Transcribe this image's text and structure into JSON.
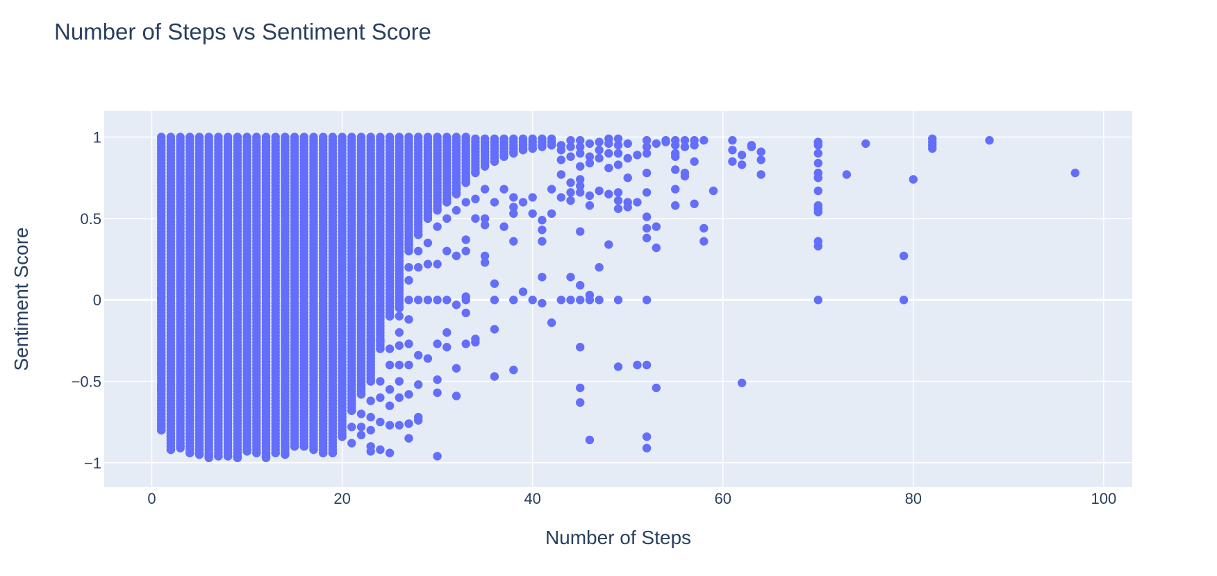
{
  "chart_data": {
    "type": "scatter",
    "title": "Number of Steps vs Sentiment Score",
    "xlabel": "Number of Steps",
    "ylabel": "Sentiment Score",
    "xlim": [
      -5,
      103
    ],
    "ylim": [
      -1.15,
      1.16
    ],
    "x_ticks": [
      {
        "value": 0,
        "label": "0"
      },
      {
        "value": 20,
        "label": "20"
      },
      {
        "value": 40,
        "label": "40"
      },
      {
        "value": 60,
        "label": "60"
      },
      {
        "value": 80,
        "label": "80"
      },
      {
        "value": 100,
        "label": "100"
      }
    ],
    "y_ticks": [
      {
        "value": -1,
        "label": "−1"
      },
      {
        "value": -0.5,
        "label": "−0.5"
      },
      {
        "value": 0,
        "label": "0"
      },
      {
        "value": 0.5,
        "label": "0.5"
      },
      {
        "value": 1,
        "label": "1"
      }
    ],
    "grid": true,
    "colors": {
      "marker": "#636efa",
      "plot_bg": "#e5ecf6",
      "grid": "#ffffff",
      "text": "#2a3f5f"
    },
    "dense_columns": [
      {
        "x": 1,
        "min": -0.8,
        "max": 1.0
      },
      {
        "x": 2,
        "min": -0.92,
        "max": 1.0
      },
      {
        "x": 3,
        "min": -0.91,
        "max": 1.0
      },
      {
        "x": 4,
        "min": -0.94,
        "max": 1.0
      },
      {
        "x": 5,
        "min": -0.95,
        "max": 1.0
      },
      {
        "x": 6,
        "min": -0.97,
        "max": 1.0
      },
      {
        "x": 7,
        "min": -0.96,
        "max": 1.0
      },
      {
        "x": 8,
        "min": -0.96,
        "max": 1.0
      },
      {
        "x": 9,
        "min": -0.97,
        "max": 1.0
      },
      {
        "x": 10,
        "min": -0.93,
        "max": 1.0
      },
      {
        "x": 11,
        "min": -0.94,
        "max": 1.0
      },
      {
        "x": 12,
        "min": -0.97,
        "max": 1.0
      },
      {
        "x": 13,
        "min": -0.94,
        "max": 1.0
      },
      {
        "x": 14,
        "min": -0.95,
        "max": 1.0
      },
      {
        "x": 15,
        "min": -0.9,
        "max": 1.0
      },
      {
        "x": 16,
        "min": -0.9,
        "max": 1.0
      },
      {
        "x": 17,
        "min": -0.92,
        "max": 1.0
      },
      {
        "x": 18,
        "min": -0.94,
        "max": 1.0
      },
      {
        "x": 19,
        "min": -0.94,
        "max": 1.0
      },
      {
        "x": 20,
        "min": -0.84,
        "max": 1.0
      },
      {
        "x": 21,
        "min": -0.68,
        "max": 1.0
      },
      {
        "x": 22,
        "min": -0.58,
        "max": 1.0
      },
      {
        "x": 23,
        "min": -0.5,
        "max": 1.0
      },
      {
        "x": 24,
        "min": -0.3,
        "max": 1.0
      },
      {
        "x": 25,
        "min": -0.1,
        "max": 1.0
      },
      {
        "x": 26,
        "min": -0.05,
        "max": 1.0
      },
      {
        "x": 27,
        "min": 0.3,
        "max": 1.0
      },
      {
        "x": 28,
        "min": 0.4,
        "max": 1.0
      },
      {
        "x": 29,
        "min": 0.5,
        "max": 1.0
      },
      {
        "x": 30,
        "min": 0.55,
        "max": 1.0
      },
      {
        "x": 31,
        "min": 0.6,
        "max": 1.0
      },
      {
        "x": 32,
        "min": 0.65,
        "max": 1.0
      },
      {
        "x": 33,
        "min": 0.72,
        "max": 1.0
      },
      {
        "x": 34,
        "min": 0.78,
        "max": 0.99
      },
      {
        "x": 35,
        "min": 0.82,
        "max": 0.99
      },
      {
        "x": 36,
        "min": 0.85,
        "max": 0.99
      },
      {
        "x": 37,
        "min": 0.88,
        "max": 0.99
      },
      {
        "x": 38,
        "min": 0.9,
        "max": 0.99
      },
      {
        "x": 39,
        "min": 0.92,
        "max": 0.99
      },
      {
        "x": 40,
        "min": 0.93,
        "max": 0.99
      },
      {
        "x": 41,
        "min": 0.94,
        "max": 0.99
      },
      {
        "x": 42,
        "min": 0.95,
        "max": 0.99
      }
    ],
    "points": [
      [
        1,
        0.01
      ],
      [
        1,
        0.07
      ],
      [
        1,
        0.12
      ],
      [
        1,
        0.2
      ],
      [
        1,
        -0.22
      ],
      [
        1,
        -0.34
      ],
      [
        1,
        -0.39
      ],
      [
        1,
        -0.44
      ],
      [
        1,
        -0.52
      ],
      [
        1,
        -0.55
      ],
      [
        1,
        -0.7
      ],
      [
        1,
        -0.74
      ],
      [
        1,
        -0.77
      ],
      [
        2,
        -0.84
      ],
      [
        2,
        -0.88
      ],
      [
        3,
        -0.88
      ],
      [
        3,
        -0.9
      ],
      [
        5,
        -0.92
      ],
      [
        6,
        -0.95
      ],
      [
        9,
        -0.96
      ],
      [
        12,
        -0.96
      ],
      [
        21,
        0.2
      ],
      [
        21,
        0.12
      ],
      [
        21,
        -0.78
      ],
      [
        21,
        -0.88
      ],
      [
        22,
        0.25
      ],
      [
        22,
        0.07
      ],
      [
        22,
        -0.02
      ],
      [
        22,
        -0.12
      ],
      [
        22,
        -0.7
      ],
      [
        22,
        -0.78
      ],
      [
        22,
        -0.83
      ],
      [
        23,
        0.4
      ],
      [
        23,
        0.26
      ],
      [
        23,
        0.18
      ],
      [
        23,
        -0.04
      ],
      [
        23,
        -0.25
      ],
      [
        23,
        -0.4
      ],
      [
        23,
        -0.62
      ],
      [
        23,
        -0.72
      ],
      [
        23,
        -0.8
      ],
      [
        23,
        -0.9
      ],
      [
        23,
        -0.93
      ],
      [
        24,
        0.28
      ],
      [
        24,
        0.1
      ],
      [
        24,
        0.0
      ],
      [
        24,
        -0.1
      ],
      [
        24,
        -0.25
      ],
      [
        24,
        -0.5
      ],
      [
        24,
        -0.6
      ],
      [
        24,
        -0.75
      ],
      [
        24,
        -0.92
      ],
      [
        25,
        0.5
      ],
      [
        25,
        0.34
      ],
      [
        25,
        0.2
      ],
      [
        25,
        0.0
      ],
      [
        25,
        -0.1
      ],
      [
        25,
        -0.3
      ],
      [
        25,
        -0.4
      ],
      [
        25,
        -0.55
      ],
      [
        25,
        -0.65
      ],
      [
        25,
        -0.77
      ],
      [
        25,
        -0.94
      ],
      [
        26,
        0.4
      ],
      [
        26,
        0.28
      ],
      [
        26,
        0.18
      ],
      [
        26,
        0.0
      ],
      [
        26,
        -0.1
      ],
      [
        26,
        -0.2
      ],
      [
        26,
        -0.28
      ],
      [
        26,
        -0.4
      ],
      [
        26,
        -0.5
      ],
      [
        26,
        -0.6
      ],
      [
        26,
        -0.77
      ],
      [
        27,
        0.34
      ],
      [
        27,
        0.2
      ],
      [
        27,
        0.12
      ],
      [
        27,
        0.0
      ],
      [
        27,
        -0.12
      ],
      [
        27,
        -0.27
      ],
      [
        27,
        -0.4
      ],
      [
        27,
        -0.58
      ],
      [
        27,
        -0.76
      ],
      [
        27,
        -0.85
      ],
      [
        28,
        0.3
      ],
      [
        28,
        0.2
      ],
      [
        28,
        0.0
      ],
      [
        28,
        -0.34
      ],
      [
        28,
        -0.52
      ],
      [
        28,
        -0.72
      ],
      [
        28,
        -0.74
      ],
      [
        29,
        0.35
      ],
      [
        29,
        0.22
      ],
      [
        29,
        0.0
      ],
      [
        29,
        -0.36
      ],
      [
        30,
        0.45
      ],
      [
        30,
        0.22
      ],
      [
        30,
        0.0
      ],
      [
        30,
        -0.27
      ],
      [
        30,
        -0.49
      ],
      [
        30,
        -0.57
      ],
      [
        30,
        -0.96
      ],
      [
        31,
        0.5
      ],
      [
        31,
        0.3
      ],
      [
        31,
        0.0
      ],
      [
        31,
        -0.2
      ],
      [
        31,
        -0.29
      ],
      [
        32,
        0.55
      ],
      [
        32,
        0.27
      ],
      [
        32,
        -0.03
      ],
      [
        32,
        -0.42
      ],
      [
        32,
        -0.59
      ],
      [
        33,
        0.6
      ],
      [
        33,
        0.37
      ],
      [
        33,
        0.3
      ],
      [
        33,
        0.02
      ],
      [
        33,
        0.0
      ],
      [
        33,
        -0.08
      ],
      [
        33,
        -0.27
      ],
      [
        34,
        0.62
      ],
      [
        34,
        0.5
      ],
      [
        34,
        -0.24
      ],
      [
        34,
        -0.26
      ],
      [
        35,
        0.68
      ],
      [
        35,
        0.5
      ],
      [
        35,
        0.46
      ],
      [
        35,
        0.27
      ],
      [
        35,
        0.23
      ],
      [
        36,
        0.6
      ],
      [
        36,
        0.1
      ],
      [
        36,
        0.0
      ],
      [
        36,
        -0.18
      ],
      [
        36,
        -0.47
      ],
      [
        37,
        0.45
      ],
      [
        37,
        0.68
      ],
      [
        38,
        0.63
      ],
      [
        38,
        0.57
      ],
      [
        38,
        0.53
      ],
      [
        38,
        0.36
      ],
      [
        38,
        0.0
      ],
      [
        38,
        -0.43
      ],
      [
        39,
        0.6
      ],
      [
        39,
        0.05
      ],
      [
        40,
        0.63
      ],
      [
        40,
        0.53
      ],
      [
        40,
        0.0
      ],
      [
        41,
        0.49
      ],
      [
        41,
        0.43
      ],
      [
        41,
        0.36
      ],
      [
        41,
        0.14
      ],
      [
        41,
        -0.02
      ],
      [
        42,
        0.68
      ],
      [
        42,
        0.53
      ],
      [
        42,
        -0.14
      ],
      [
        43,
        0.95
      ],
      [
        43,
        0.92
      ],
      [
        43,
        0.86
      ],
      [
        43,
        0.77
      ],
      [
        43,
        0.63
      ],
      [
        43,
        0.0
      ],
      [
        44,
        0.98
      ],
      [
        44,
        0.94
      ],
      [
        44,
        0.88
      ],
      [
        44,
        0.72
      ],
      [
        44,
        0.66
      ],
      [
        44,
        0.61
      ],
      [
        44,
        0.14
      ],
      [
        44,
        0.0
      ],
      [
        45,
        0.98
      ],
      [
        45,
        0.94
      ],
      [
        45,
        0.9
      ],
      [
        45,
        0.82
      ],
      [
        45,
        0.74
      ],
      [
        45,
        0.7
      ],
      [
        45,
        0.66
      ],
      [
        45,
        0.42
      ],
      [
        45,
        0.09
      ],
      [
        45,
        0.0
      ],
      [
        45,
        -0.29
      ],
      [
        45,
        -0.54
      ],
      [
        45,
        -0.63
      ],
      [
        46,
        0.96
      ],
      [
        46,
        0.88
      ],
      [
        46,
        0.84
      ],
      [
        46,
        0.64
      ],
      [
        46,
        0.58
      ],
      [
        46,
        0.03
      ],
      [
        46,
        0.0
      ],
      [
        46,
        -0.86
      ],
      [
        47,
        0.97
      ],
      [
        47,
        0.92
      ],
      [
        47,
        0.87
      ],
      [
        47,
        0.67
      ],
      [
        47,
        0.2
      ],
      [
        47,
        0.0
      ],
      [
        48,
        0.99
      ],
      [
        48,
        0.96
      ],
      [
        48,
        0.9
      ],
      [
        48,
        0.81
      ],
      [
        48,
        0.65
      ],
      [
        48,
        0.34
      ],
      [
        49,
        0.99
      ],
      [
        49,
        0.95
      ],
      [
        49,
        0.9
      ],
      [
        49,
        0.83
      ],
      [
        49,
        0.66
      ],
      [
        49,
        0.61
      ],
      [
        49,
        0.56
      ],
      [
        49,
        0.0
      ],
      [
        49,
        -0.41
      ],
      [
        50,
        0.96
      ],
      [
        50,
        0.87
      ],
      [
        50,
        0.75
      ],
      [
        50,
        0.6
      ],
      [
        50,
        0.57
      ],
      [
        51,
        0.89
      ],
      [
        51,
        0.6
      ],
      [
        51,
        -0.4
      ],
      [
        52,
        0.98
      ],
      [
        52,
        0.94
      ],
      [
        52,
        0.9
      ],
      [
        52,
        0.78
      ],
      [
        52,
        0.66
      ],
      [
        52,
        0.51
      ],
      [
        52,
        0.44
      ],
      [
        52,
        0.38
      ],
      [
        52,
        0.0
      ],
      [
        52,
        -0.4
      ],
      [
        52,
        -0.84
      ],
      [
        52,
        -0.91
      ],
      [
        53,
        0.96
      ],
      [
        53,
        0.45
      ],
      [
        53,
        0.32
      ],
      [
        53,
        -0.54
      ],
      [
        54,
        0.98
      ],
      [
        54,
        0.97
      ],
      [
        55,
        0.98
      ],
      [
        55,
        0.95
      ],
      [
        55,
        0.9
      ],
      [
        55,
        0.88
      ],
      [
        55,
        0.8
      ],
      [
        55,
        0.68
      ],
      [
        55,
        0.58
      ],
      [
        56,
        0.98
      ],
      [
        56,
        0.94
      ],
      [
        56,
        0.78
      ],
      [
        56,
        0.76
      ],
      [
        57,
        0.98
      ],
      [
        57,
        0.95
      ],
      [
        57,
        0.85
      ],
      [
        57,
        0.59
      ],
      [
        58,
        0.98
      ],
      [
        58,
        0.44
      ],
      [
        58,
        0.36
      ],
      [
        59,
        0.67
      ],
      [
        61,
        0.98
      ],
      [
        61,
        0.92
      ],
      [
        61,
        0.85
      ],
      [
        62,
        0.89
      ],
      [
        62,
        0.83
      ],
      [
        62,
        -0.51
      ],
      [
        63,
        0.95
      ],
      [
        63,
        0.94
      ],
      [
        64,
        0.91
      ],
      [
        64,
        0.86
      ],
      [
        64,
        0.77
      ],
      [
        70,
        0.97
      ],
      [
        70,
        0.95
      ],
      [
        70,
        0.9
      ],
      [
        70,
        0.84
      ],
      [
        70,
        0.78
      ],
      [
        70,
        0.75
      ],
      [
        70,
        0.67
      ],
      [
        70,
        0.58
      ],
      [
        70,
        0.56
      ],
      [
        70,
        0.54
      ],
      [
        70,
        0.36
      ],
      [
        70,
        0.33
      ],
      [
        70,
        0.0
      ],
      [
        73,
        0.77
      ],
      [
        75,
        0.96
      ],
      [
        79,
        0.27
      ],
      [
        79,
        0.0
      ],
      [
        80,
        0.74
      ],
      [
        82,
        0.99
      ],
      [
        82,
        0.97
      ],
      [
        82,
        0.95
      ],
      [
        82,
        0.93
      ],
      [
        88,
        0.98
      ],
      [
        97,
        0.78
      ]
    ]
  }
}
